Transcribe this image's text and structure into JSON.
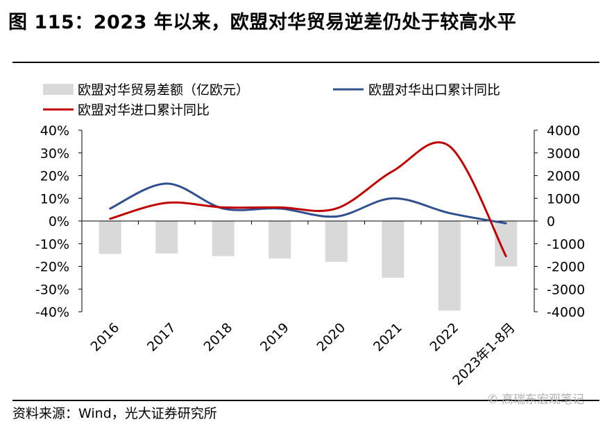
{
  "figure_title": "图 115：2023 年以来，欧盟对华贸易逆差仍处于较高水平",
  "source_text": "资料来源：Wind，光大证券研究所",
  "watermark_text": "高瑞东宏观笔记",
  "watermark_icon": "wechat-icon",
  "colors": {
    "bar": "#d9d9d9",
    "export_line": "#2f4f8f",
    "import_line": "#c00000",
    "axis": "#000000"
  },
  "chart_data": {
    "type": "bar+line",
    "categories": [
      "2016",
      "2017",
      "2018",
      "2019",
      "2020",
      "2021",
      "2022",
      "2023年1-8月"
    ],
    "left_axis": {
      "min": -40,
      "max": 40,
      "step": 10,
      "tick_labels": [
        "40%",
        "30%",
        "20%",
        "10%",
        "0%",
        "-10%",
        "-20%",
        "-30%",
        "-40%"
      ]
    },
    "right_axis": {
      "min": -4000,
      "max": 4000,
      "step": 1000,
      "tick_labels": [
        "4000",
        "3000",
        "2000",
        "1000",
        "0",
        "-1000",
        "-2000",
        "-3000",
        "-4000"
      ]
    },
    "series": [
      {
        "name": "欧盟对华贸易差额（亿欧元）",
        "type": "bar",
        "axis": "right",
        "values": [
          -1450,
          -1430,
          -1550,
          -1650,
          -1800,
          -2500,
          -3950,
          -2000
        ]
      },
      {
        "name": "欧盟对华出口累计同比",
        "type": "line",
        "axis": "left",
        "smooth": true,
        "values": [
          5.5,
          16.5,
          5.5,
          5.5,
          2.0,
          10.0,
          3.5,
          -1.0
        ]
      },
      {
        "name": "欧盟对华进口累计同比",
        "type": "line",
        "axis": "left",
        "smooth": true,
        "values": [
          1.0,
          8.0,
          6.0,
          6.0,
          5.5,
          22.0,
          33.0,
          -15.5
        ]
      }
    ],
    "legend_position": "top-left"
  }
}
